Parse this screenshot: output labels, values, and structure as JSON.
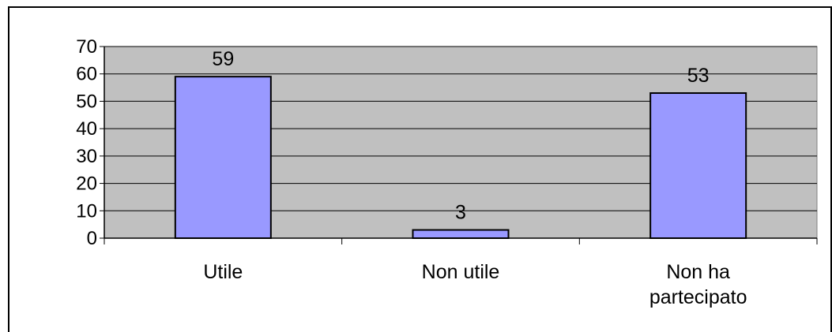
{
  "chart_data": {
    "type": "bar",
    "categories": [
      [
        "Utile"
      ],
      [
        "Non utile"
      ],
      [
        "Non ha",
        "partecipato"
      ]
    ],
    "values": [
      59,
      3,
      53
    ],
    "ylim": [
      0,
      70
    ],
    "yticks": [
      0,
      10,
      20,
      30,
      40,
      50,
      60,
      70
    ],
    "grid": true,
    "legend": "none",
    "colors": {
      "bar_fill": "#9999ff",
      "bar_stroke": "#000000",
      "plot_background": "#c0c0c0",
      "gridline": "#000000"
    }
  }
}
